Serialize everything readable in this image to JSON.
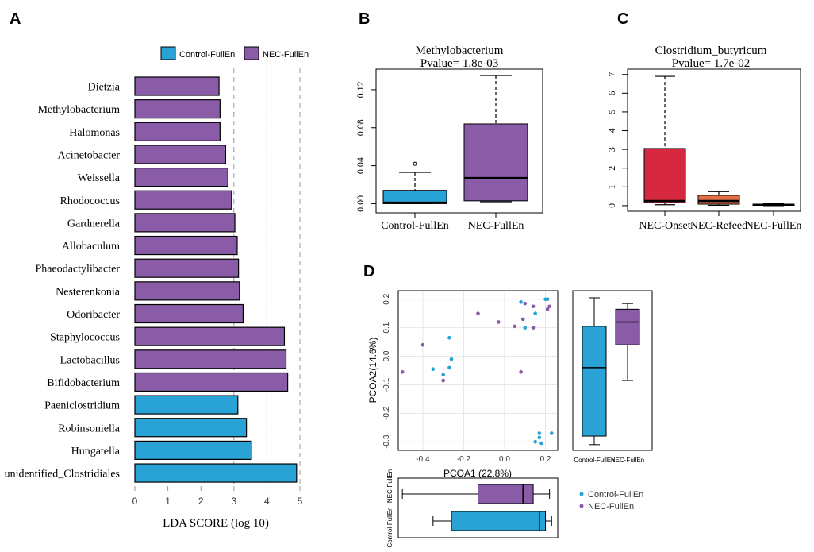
{
  "colors": {
    "control": "#29a3d6",
    "nec": "#8a5ba6",
    "onset": "#d6293f",
    "refeed": "#e07048",
    "grid": "#e6e6e6",
    "dash": "#9a9a9a"
  },
  "panels": {
    "a": "A",
    "b": "B",
    "c": "C",
    "d": "D"
  },
  "chart_data": [
    {
      "panel": "A",
      "type": "bar",
      "orientation": "horizontal",
      "legend": {
        "control": "Control-FullEn",
        "nec": "NEC-FullEn"
      },
      "xlabel": "LDA SCORE (log 10)",
      "xlim": [
        0,
        5
      ],
      "xticks": [
        0,
        1,
        2,
        3,
        4,
        5
      ],
      "dashed_lines": [
        3,
        4,
        5
      ],
      "bars": [
        {
          "label": "Dietzia",
          "value": 2.55,
          "group": "nec"
        },
        {
          "label": "Methylobacterium",
          "value": 2.58,
          "group": "nec"
        },
        {
          "label": "Halomonas",
          "value": 2.58,
          "group": "nec"
        },
        {
          "label": "Acinetobacter",
          "value": 2.75,
          "group": "nec"
        },
        {
          "label": "Weissella",
          "value": 2.82,
          "group": "nec"
        },
        {
          "label": "Rhodococcus",
          "value": 2.93,
          "group": "nec"
        },
        {
          "label": "Gardnerella",
          "value": 3.03,
          "group": "nec"
        },
        {
          "label": "Allobaculum",
          "value": 3.1,
          "group": "nec"
        },
        {
          "label": "Phaeodactylibacter",
          "value": 3.14,
          "group": "nec"
        },
        {
          "label": "Nesterenkonia",
          "value": 3.17,
          "group": "nec"
        },
        {
          "label": "Odoribacter",
          "value": 3.28,
          "group": "nec"
        },
        {
          "label": "Staphylococcus",
          "value": 4.53,
          "group": "nec"
        },
        {
          "label": "Lactobacillus",
          "value": 4.58,
          "group": "nec"
        },
        {
          "label": "Bifidobacterium",
          "value": 4.63,
          "group": "nec"
        },
        {
          "label": "Paeniclostridium",
          "value": 3.12,
          "group": "control"
        },
        {
          "label": "Robinsoniella",
          "value": 3.38,
          "group": "control"
        },
        {
          "label": "Hungatella",
          "value": 3.53,
          "group": "control"
        },
        {
          "label": "unidentified_Clostridiales",
          "value": 4.9,
          "group": "control"
        }
      ]
    },
    {
      "panel": "B",
      "type": "box",
      "title": "Methylobacterium",
      "subtitle": "Pvalue= 1.8e-03",
      "ylim": [
        -0.008,
        0.14
      ],
      "yticks": [
        0.0,
        0.04,
        0.08,
        0.12
      ],
      "ytick_labels": [
        "0.00",
        "0.04",
        "0.08",
        "0.12"
      ],
      "boxes": [
        {
          "label": "Control-FullEn",
          "color": "control",
          "min": 0.0,
          "q1": 0.0,
          "median": 0.001,
          "q3": 0.014,
          "max": 0.033,
          "outliers": [
            0.042
          ]
        },
        {
          "label": "NEC-FullEn",
          "color": "nec",
          "min": 0.002,
          "q1": 0.003,
          "median": 0.027,
          "q3": 0.084,
          "max": 0.135,
          "outliers": []
        }
      ]
    },
    {
      "panel": "C",
      "type": "box",
      "title": "Clostridium_butyricum",
      "subtitle": "Pvalue= 1.7e-02",
      "ylim": [
        -0.3,
        7.2
      ],
      "yticks": [
        0,
        1,
        2,
        3,
        4,
        5,
        6,
        7
      ],
      "ytick_labels": [
        "0",
        "1",
        "2",
        "3",
        "4",
        "5",
        "6",
        "7"
      ],
      "boxes": [
        {
          "label": "NEC-Onset",
          "color": "onset",
          "min": 0.05,
          "q1": 0.15,
          "median": 0.25,
          "q3": 3.05,
          "max": 6.9,
          "outliers": []
        },
        {
          "label": "NEC-Refeed",
          "color": "refeed",
          "min": 0.02,
          "q1": 0.08,
          "median": 0.25,
          "q3": 0.55,
          "max": 0.75,
          "outliers": []
        },
        {
          "label": "NEC-FullEn",
          "color": "nec",
          "min": 0.0,
          "q1": 0.02,
          "median": 0.05,
          "q3": 0.08,
          "max": 0.1,
          "outliers": []
        }
      ]
    },
    {
      "panel": "D",
      "type": "scatter",
      "xlabel": "PCOA1 (22.8%)",
      "ylabel": "PCOA2(14.6%)",
      "xlim": [
        -0.52,
        0.26
      ],
      "ylim": [
        -0.33,
        0.23
      ],
      "xticks": [
        -0.4,
        -0.2,
        0.0,
        0.2
      ],
      "xtick_labels": [
        "-0.4",
        "-0.2",
        "0.0",
        "0.2"
      ],
      "yticks": [
        -0.3,
        -0.2,
        -0.1,
        0.0,
        0.1,
        0.2
      ],
      "ytick_labels": [
        "-0.3",
        "-0.2",
        "-0.1",
        "0.0",
        "0.1",
        "0.2"
      ],
      "legend": {
        "control": "Control-FullEn",
        "nec": "NEC-FullEn"
      },
      "series": [
        {
          "name": "Control-FullEn",
          "color": "control",
          "points": [
            [
              0.08,
              0.19
            ],
            [
              0.15,
              0.15
            ],
            [
              0.2,
              0.2
            ],
            [
              0.21,
              0.2
            ],
            [
              0.1,
              0.1
            ],
            [
              -0.27,
              0.065
            ],
            [
              -0.26,
              -0.01
            ],
            [
              -0.27,
              -0.04
            ],
            [
              -0.35,
              -0.045
            ],
            [
              -0.3,
              -0.065
            ],
            [
              0.17,
              -0.27
            ],
            [
              0.23,
              -0.27
            ],
            [
              0.17,
              -0.285
            ],
            [
              0.15,
              -0.3
            ],
            [
              0.18,
              -0.305
            ]
          ]
        },
        {
          "name": "NEC-FullEn",
          "color": "nec",
          "points": [
            [
              0.1,
              0.185
            ],
            [
              0.14,
              0.175
            ],
            [
              0.22,
              0.175
            ],
            [
              0.21,
              0.165
            ],
            [
              0.09,
              0.13
            ],
            [
              0.14,
              0.1
            ],
            [
              0.05,
              0.105
            ],
            [
              -0.03,
              0.12
            ],
            [
              -0.13,
              0.15
            ],
            [
              -0.4,
              0.04
            ],
            [
              -0.5,
              -0.055
            ],
            [
              0.08,
              -0.055
            ],
            [
              -0.3,
              -0.085
            ]
          ]
        }
      ],
      "box_y": {
        "xlabels": [
          "Control-FullEn",
          "NEC-FullEn"
        ],
        "boxes": [
          {
            "label": "Control-FullEn",
            "color": "control",
            "min": -0.31,
            "q1": -0.28,
            "median": -0.04,
            "q3": 0.105,
            "max": 0.205
          },
          {
            "label": "NEC-FullEn",
            "color": "nec",
            "min": -0.085,
            "q1": 0.04,
            "median": 0.12,
            "q3": 0.165,
            "max": 0.185
          }
        ]
      },
      "box_x": {
        "ylabels": [
          "Control-FullEn",
          "NEC-FullEn"
        ],
        "boxes": [
          {
            "label": "NEC-FullEn",
            "color": "nec",
            "min": -0.5,
            "q1": -0.13,
            "median": 0.09,
            "q3": 0.14,
            "max": 0.22
          },
          {
            "label": "Control-FullEn",
            "color": "control",
            "min": -0.35,
            "q1": -0.26,
            "median": 0.17,
            "q3": 0.2,
            "max": 0.23
          }
        ]
      }
    }
  ]
}
